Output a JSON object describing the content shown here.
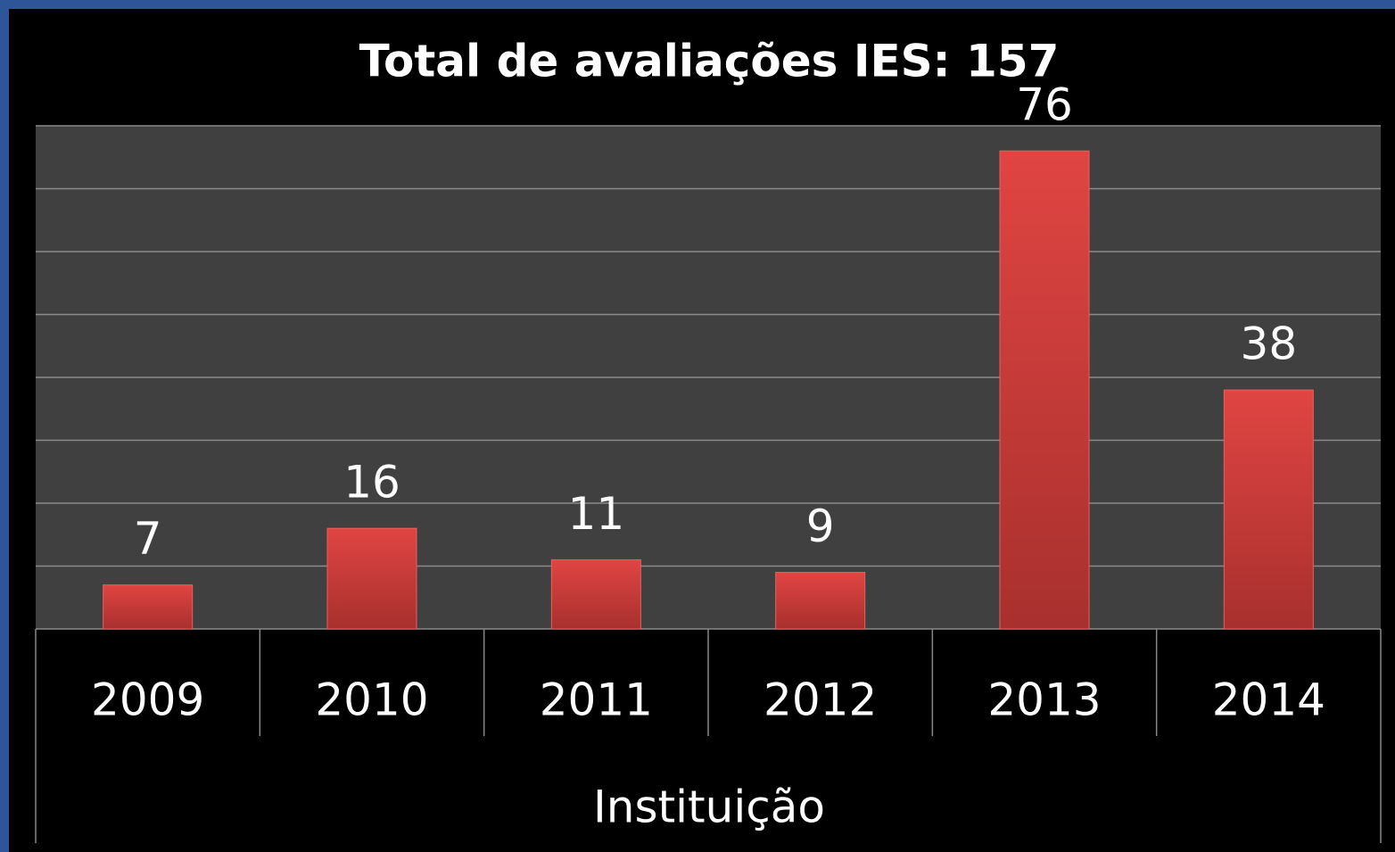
{
  "chart_data": {
    "type": "bar",
    "title": "Total de avaliações IES: 157",
    "categories": [
      "2009",
      "2010",
      "2011",
      "2012",
      "2013",
      "2014"
    ],
    "values": [
      7,
      16,
      11,
      9,
      76,
      38
    ],
    "color": "#d0403e",
    "x_label": "Instituição",
    "ylim": [
      0,
      80
    ],
    "yticks": [
      0,
      10,
      20,
      30,
      40,
      50,
      60,
      70,
      80
    ],
    "grid": true
  }
}
